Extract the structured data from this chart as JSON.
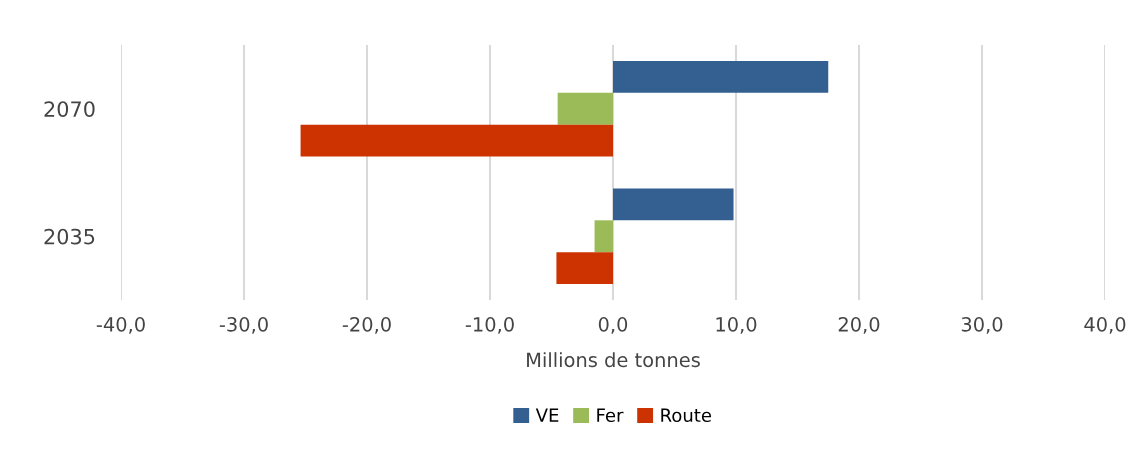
{
  "chart_data": {
    "type": "bar",
    "orientation": "horizontal",
    "xlabel": "Millions de tonnes",
    "categories": [
      "2070",
      "2035"
    ],
    "series": [
      {
        "name": "VE",
        "color": "#335f91",
        "values": [
          17.5,
          9.8
        ]
      },
      {
        "name": "Fer",
        "color": "#9bbb59",
        "values": [
          -4.5,
          -1.5
        ]
      },
      {
        "name": "Route",
        "color": "#cc3300",
        "values": [
          -25.4,
          -4.6
        ]
      }
    ],
    "xlim": [
      -40,
      40
    ],
    "xticks": [
      {
        "value": -40,
        "label": "-40,0"
      },
      {
        "value": -30,
        "label": "-30,0"
      },
      {
        "value": -20,
        "label": "-20,0"
      },
      {
        "value": -10,
        "label": "-10,0"
      },
      {
        "value": 0,
        "label": "0,0"
      },
      {
        "value": 10,
        "label": "10,0"
      },
      {
        "value": 20,
        "label": "20,0"
      },
      {
        "value": 30,
        "label": "30,0"
      },
      {
        "value": 40,
        "label": "40,0"
      }
    ],
    "grid": "x",
    "legend": "bottom"
  }
}
